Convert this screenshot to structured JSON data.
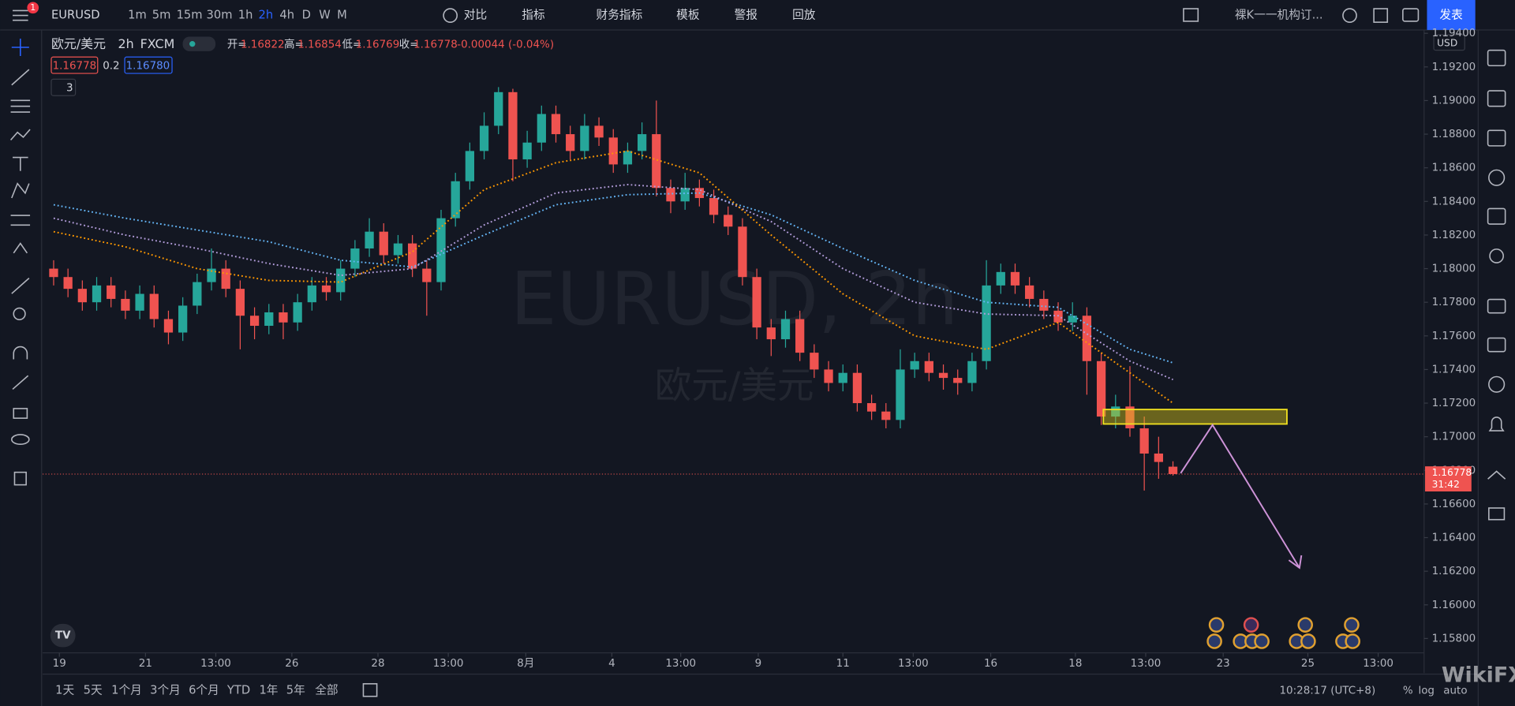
{
  "toolbar": {
    "symbol": "EURUSD",
    "notification_count": 1,
    "intervals": [
      "1m",
      "5m",
      "15m",
      "30m",
      "1h",
      "2h",
      "4h",
      "D",
      "W",
      "M"
    ],
    "compare": "对比",
    "indicators": "指标",
    "financials": "财务指标",
    "templates": "模板",
    "alert": "警报",
    "replay": "回放",
    "layout_name": "裸K一一机构订...",
    "publish": "发表"
  },
  "legend": {
    "symbol_name": "欧元/美元",
    "interval": "2h",
    "exchange": "FXCM",
    "open_label": "开=",
    "open": 1.16822,
    "high_label": "高=",
    "high": 1.16854,
    "low_label": "低=",
    "low": 1.16769,
    "close_label": "收=",
    "close": 1.16778,
    "change": "-0.00044 (-0.04%)",
    "bid": 1.16778,
    "spread": 0.2,
    "ask": {
      "value": 1.1678,
      "label": "1.16780"
    },
    "indicator_count": 3
  },
  "watermark": {
    "title": "EURUSD, 2h",
    "subtitle": "欧元/美元"
  },
  "chart_data": {
    "type": "candlestick",
    "up_color": "#26a69a",
    "down_color": "#ef5350",
    "x": [
      0,
      1,
      2,
      3,
      4,
      5,
      6,
      7,
      8,
      9,
      10,
      11,
      12,
      13,
      14,
      15,
      16,
      17,
      18,
      19,
      20,
      21,
      22,
      23,
      24,
      25,
      26,
      27,
      28,
      29,
      30,
      31,
      32,
      33,
      34,
      35,
      36,
      37,
      38,
      39,
      40,
      41,
      42,
      43,
      44,
      45,
      46,
      47,
      48,
      49,
      50,
      51,
      52,
      53,
      54,
      55,
      56,
      57,
      58,
      59,
      60,
      61,
      62,
      63,
      64,
      65,
      66,
      67,
      68,
      69,
      70,
      71,
      72,
      73,
      74,
      75,
      76,
      77,
      78
    ],
    "open": [
      1.18,
      1.1795,
      1.1788,
      1.178,
      1.179,
      1.1782,
      1.1775,
      1.1785,
      1.177,
      1.1762,
      1.1778,
      1.1792,
      1.18,
      1.1788,
      1.1772,
      1.1766,
      1.1774,
      1.1768,
      1.178,
      1.179,
      1.1786,
      1.18,
      1.1812,
      1.1822,
      1.1808,
      1.1815,
      1.18,
      1.1792,
      1.183,
      1.1852,
      1.187,
      1.1885,
      1.1905,
      1.1865,
      1.1875,
      1.1892,
      1.188,
      1.187,
      1.1885,
      1.1878,
      1.1862,
      1.187,
      1.188,
      1.1848,
      1.184,
      1.1848,
      1.1842,
      1.1832,
      1.1825,
      1.1795,
      1.1765,
      1.1758,
      1.177,
      1.175,
      1.174,
      1.1732,
      1.1738,
      1.172,
      1.1715,
      1.171,
      1.174,
      1.1745,
      1.1738,
      1.1735,
      1.1732,
      1.1745,
      1.179,
      1.1798,
      1.179,
      1.1782,
      1.1775,
      1.1768,
      1.1772,
      1.1745,
      1.1712,
      1.1718,
      1.1705,
      1.169,
      1.16822
    ],
    "high": [
      1.1805,
      1.18,
      1.1793,
      1.1795,
      1.1795,
      1.1787,
      1.179,
      1.179,
      1.1775,
      1.1783,
      1.1797,
      1.1812,
      1.1805,
      1.1793,
      1.1777,
      1.1779,
      1.1779,
      1.1785,
      1.1795,
      1.1795,
      1.1805,
      1.1817,
      1.183,
      1.1827,
      1.182,
      1.182,
      1.1805,
      1.1835,
      1.1857,
      1.1875,
      1.1893,
      1.1908,
      1.1907,
      1.1882,
      1.1897,
      1.1897,
      1.1885,
      1.1892,
      1.189,
      1.1883,
      1.1875,
      1.1887,
      1.19,
      1.1853,
      1.1857,
      1.1853,
      1.1847,
      1.1837,
      1.183,
      1.18,
      1.177,
      1.1775,
      1.1775,
      1.1755,
      1.1745,
      1.1743,
      1.1743,
      1.1725,
      1.172,
      1.1752,
      1.175,
      1.175,
      1.1743,
      1.174,
      1.175,
      1.1805,
      1.1803,
      1.1803,
      1.1795,
      1.1787,
      1.178,
      1.178,
      1.1777,
      1.175,
      1.1725,
      1.1742,
      1.1712,
      1.17,
      1.16854
    ],
    "low": [
      1.179,
      1.1783,
      1.1775,
      1.1775,
      1.1777,
      1.177,
      1.177,
      1.1765,
      1.1755,
      1.1757,
      1.1773,
      1.1787,
      1.1783,
      1.1752,
      1.1758,
      1.1761,
      1.1758,
      1.1763,
      1.1775,
      1.1781,
      1.1781,
      1.1795,
      1.1807,
      1.1803,
      1.1803,
      1.1795,
      1.1772,
      1.1787,
      1.1825,
      1.1847,
      1.1865,
      1.188,
      1.1852,
      1.186,
      1.187,
      1.1875,
      1.1865,
      1.1865,
      1.1873,
      1.1857,
      1.1857,
      1.1865,
      1.1843,
      1.1833,
      1.1835,
      1.1837,
      1.1827,
      1.182,
      1.179,
      1.1758,
      1.1748,
      1.1753,
      1.1745,
      1.1735,
      1.1727,
      1.1727,
      1.1715,
      1.171,
      1.1705,
      1.1705,
      1.1735,
      1.1733,
      1.1728,
      1.1725,
      1.1727,
      1.174,
      1.1785,
      1.1785,
      1.1777,
      1.177,
      1.1763,
      1.1763,
      1.1725,
      1.1707,
      1.1705,
      1.17,
      1.1668,
      1.1675,
      1.16769
    ],
    "close": [
      1.1795,
      1.1788,
      1.178,
      1.179,
      1.1782,
      1.1775,
      1.1785,
      1.177,
      1.1762,
      1.1778,
      1.1792,
      1.18,
      1.1788,
      1.1772,
      1.1766,
      1.1774,
      1.1768,
      1.178,
      1.179,
      1.1786,
      1.18,
      1.1812,
      1.1822,
      1.1808,
      1.1815,
      1.18,
      1.1792,
      1.183,
      1.1852,
      1.187,
      1.1885,
      1.1905,
      1.1865,
      1.1875,
      1.1892,
      1.188,
      1.187,
      1.1885,
      1.1878,
      1.1862,
      1.187,
      1.188,
      1.1848,
      1.184,
      1.1848,
      1.1842,
      1.1832,
      1.1825,
      1.1795,
      1.1765,
      1.1758,
      1.177,
      1.175,
      1.174,
      1.1732,
      1.1738,
      1.172,
      1.1715,
      1.171,
      1.174,
      1.1745,
      1.1738,
      1.1735,
      1.1732,
      1.1745,
      1.179,
      1.1798,
      1.179,
      1.1782,
      1.1775,
      1.1768,
      1.1772,
      1.1745,
      1.1712,
      1.1718,
      1.1705,
      1.169,
      1.1685,
      1.16778
    ],
    "series": [
      {
        "color": "#64b5f6",
        "x": [
          0,
          5,
          10,
          15,
          20,
          25,
          30,
          35,
          40,
          45,
          50,
          55,
          60,
          65,
          70,
          75,
          78
        ],
        "values": [
          1.1838,
          1.183,
          1.1823,
          1.1816,
          1.1805,
          1.1801,
          1.182,
          1.1838,
          1.1844,
          1.1845,
          1.1832,
          1.1812,
          1.1793,
          1.178,
          1.1777,
          1.1752,
          1.1744
        ]
      },
      {
        "color": "#b39ddb",
        "x": [
          0,
          5,
          10,
          15,
          20,
          25,
          30,
          35,
          40,
          45,
          50,
          55,
          60,
          65,
          70,
          75,
          78
        ],
        "values": [
          1.183,
          1.182,
          1.1812,
          1.1803,
          1.1796,
          1.18,
          1.1826,
          1.1845,
          1.185,
          1.1847,
          1.1828,
          1.18,
          1.178,
          1.1773,
          1.1772,
          1.1745,
          1.1734
        ]
      },
      {
        "color": "#ff9800",
        "x": [
          0,
          5,
          10,
          15,
          20,
          25,
          30,
          35,
          40,
          45,
          50,
          55,
          60,
          65,
          70,
          75,
          78
        ],
        "values": [
          1.1822,
          1.1813,
          1.18,
          1.1793,
          1.1792,
          1.181,
          1.1847,
          1.1863,
          1.187,
          1.1857,
          1.182,
          1.1785,
          1.176,
          1.1752,
          1.1768,
          1.1738,
          1.172
        ]
      }
    ],
    "xlim": [
      -0.5,
      95.5
    ],
    "xticks": [
      {
        "value": 0.4,
        "label": "19"
      },
      {
        "value": 6.4,
        "label": "21"
      },
      {
        "value": 11.3,
        "label": "13:00"
      },
      {
        "value": 16.6,
        "label": "26"
      },
      {
        "value": 22.6,
        "label": "28"
      },
      {
        "value": 27.5,
        "label": "13:00"
      },
      {
        "value": 32.9,
        "label": "8月"
      },
      {
        "value": 38.9,
        "label": "4"
      },
      {
        "value": 43.7,
        "label": "13:00"
      },
      {
        "value": 49.1,
        "label": "9"
      },
      {
        "value": 55,
        "label": "11"
      },
      {
        "value": 59.9,
        "label": "13:00"
      },
      {
        "value": 65.3,
        "label": "16"
      },
      {
        "value": 71.2,
        "label": "18"
      },
      {
        "value": 76.1,
        "label": "13:00"
      },
      {
        "value": 81.5,
        "label": "23"
      },
      {
        "value": 87.4,
        "label": "25"
      },
      {
        "value": 92.3,
        "label": "13:00"
      }
    ],
    "ylim": [
      1.1572,
      1.1942
    ],
    "yticks": [
      {
        "value": 1.158,
        "label": "1.15800"
      },
      {
        "value": 1.16,
        "label": "1.16000"
      },
      {
        "value": 1.162,
        "label": "1.16200"
      },
      {
        "value": 1.164,
        "label": "1.16400"
      },
      {
        "value": 1.166,
        "label": "1.16600"
      },
      {
        "value": 1.168,
        "label": "1.16800"
      },
      {
        "value": 1.17,
        "label": "1.17000"
      },
      {
        "value": 1.172,
        "label": "1.17200"
      },
      {
        "value": 1.174,
        "label": "1.17400"
      },
      {
        "value": 1.176,
        "label": "1.17600"
      },
      {
        "value": 1.178,
        "label": "1.17800"
      },
      {
        "value": 1.18,
        "label": "1.18000"
      },
      {
        "value": 1.182,
        "label": "1.18200"
      },
      {
        "value": 1.184,
        "label": "1.18400"
      },
      {
        "value": 1.186,
        "label": "1.18600"
      },
      {
        "value": 1.188,
        "label": "1.18800"
      },
      {
        "value": 1.19,
        "label": "1.19000"
      },
      {
        "value": 1.192,
        "label": "1.19200"
      },
      {
        "value": 1.194,
        "label": "1.19400"
      }
    ],
    "currency": "USD",
    "last_price": 1.16778,
    "countdown": "31:42",
    "grid": false
  },
  "bottom_bar": {
    "ranges": [
      "1天",
      "5天",
      "1个月",
      "3个月",
      "6个月",
      "YTD",
      "1年",
      "5年",
      "全部"
    ],
    "clock": "10:28:17 (UTC+8)",
    "percent": "%",
    "log": "log",
    "auto": "auto"
  },
  "brand": "WikiFX"
}
